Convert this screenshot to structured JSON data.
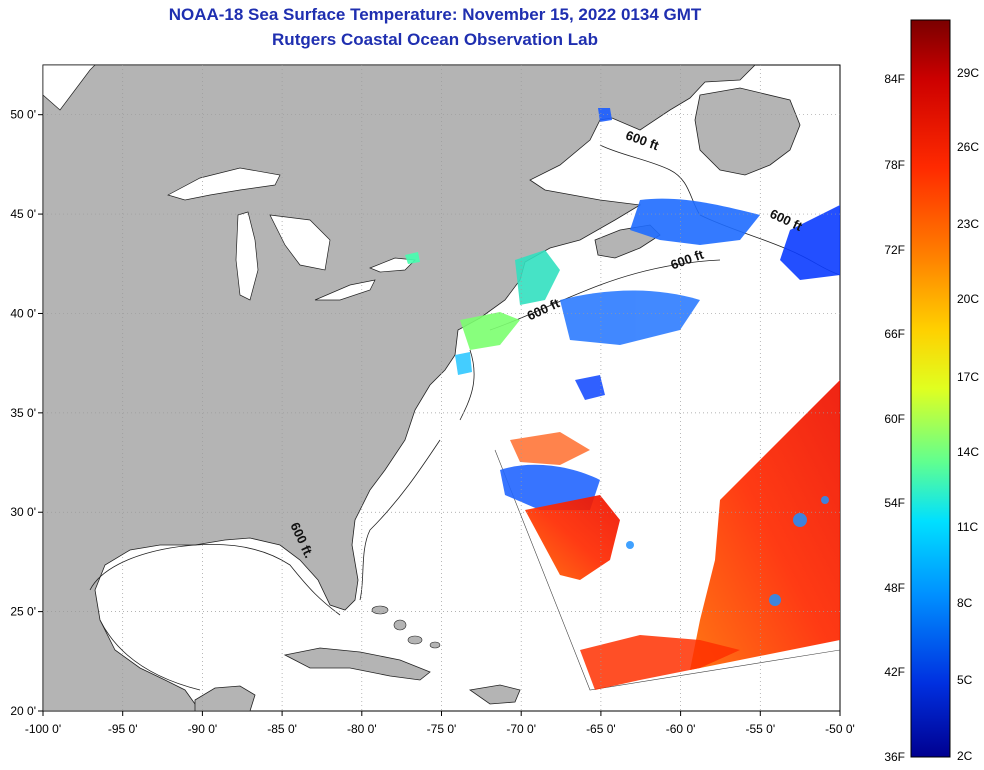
{
  "header": {
    "title": "NOAA-18 Sea Surface Temperature:  November 15, 2022 0134 GMT",
    "subtitle": "Rutgers Coastal Ocean Observation Lab"
  },
  "map": {
    "lon_range": [
      -100,
      -50
    ],
    "lat_range": [
      20,
      52.5
    ],
    "lon_ticks": [
      {
        "value": -100,
        "label": "-100 0'"
      },
      {
        "value": -95,
        "label": "-95 0'"
      },
      {
        "value": -90,
        "label": "-90 0'"
      },
      {
        "value": -85,
        "label": "-85 0'"
      },
      {
        "value": -80,
        "label": "-80 0'"
      },
      {
        "value": -75,
        "label": "-75 0'"
      },
      {
        "value": -70,
        "label": "-70 0'"
      },
      {
        "value": -65,
        "label": "-65 0'"
      },
      {
        "value": -60,
        "label": "-60 0'"
      },
      {
        "value": -55,
        "label": "-55 0'"
      },
      {
        "value": -50,
        "label": "-50 0'"
      }
    ],
    "lat_ticks": [
      {
        "value": 20,
        "label": "20 0'"
      },
      {
        "value": 25,
        "label": "25 0'"
      },
      {
        "value": 30,
        "label": "30 0'"
      },
      {
        "value": 35,
        "label": "35 0'"
      },
      {
        "value": 40,
        "label": "40 0'"
      },
      {
        "value": 45,
        "label": "45 0'"
      },
      {
        "value": 50,
        "label": "50 0'"
      }
    ],
    "contour_labels": [
      {
        "text": "600 ft",
        "lon": -62.5,
        "lat": 48.5
      },
      {
        "text": "600 ft",
        "lon": -53.5,
        "lat": 44.5
      },
      {
        "text": "600 ft",
        "lon": -59.5,
        "lat": 42.5
      },
      {
        "text": "600 ft",
        "lon": -68.5,
        "lat": 40.0
      },
      {
        "text": "600 ft.",
        "lon": -84.0,
        "lat": 28.5
      }
    ],
    "colors": {
      "land": "#b4b4b4",
      "ocean": "#ffffff",
      "grid": "#888888"
    }
  },
  "colorbar": {
    "fahrenheit_labels": [
      "84F",
      "78F",
      "72F",
      "66F",
      "60F",
      "54F",
      "48F",
      "42F",
      "36F"
    ],
    "celsius_labels": [
      "29C",
      "26C",
      "23C",
      "20C",
      "17C",
      "14C",
      "11C",
      "8C",
      "5C",
      "2C"
    ],
    "colors": [
      "#7a0000",
      "#cc0000",
      "#ff2a00",
      "#ff8000",
      "#ffd000",
      "#e0ff20",
      "#60ff90",
      "#00e0ff",
      "#0090ff",
      "#0030e0",
      "#000090"
    ]
  }
}
